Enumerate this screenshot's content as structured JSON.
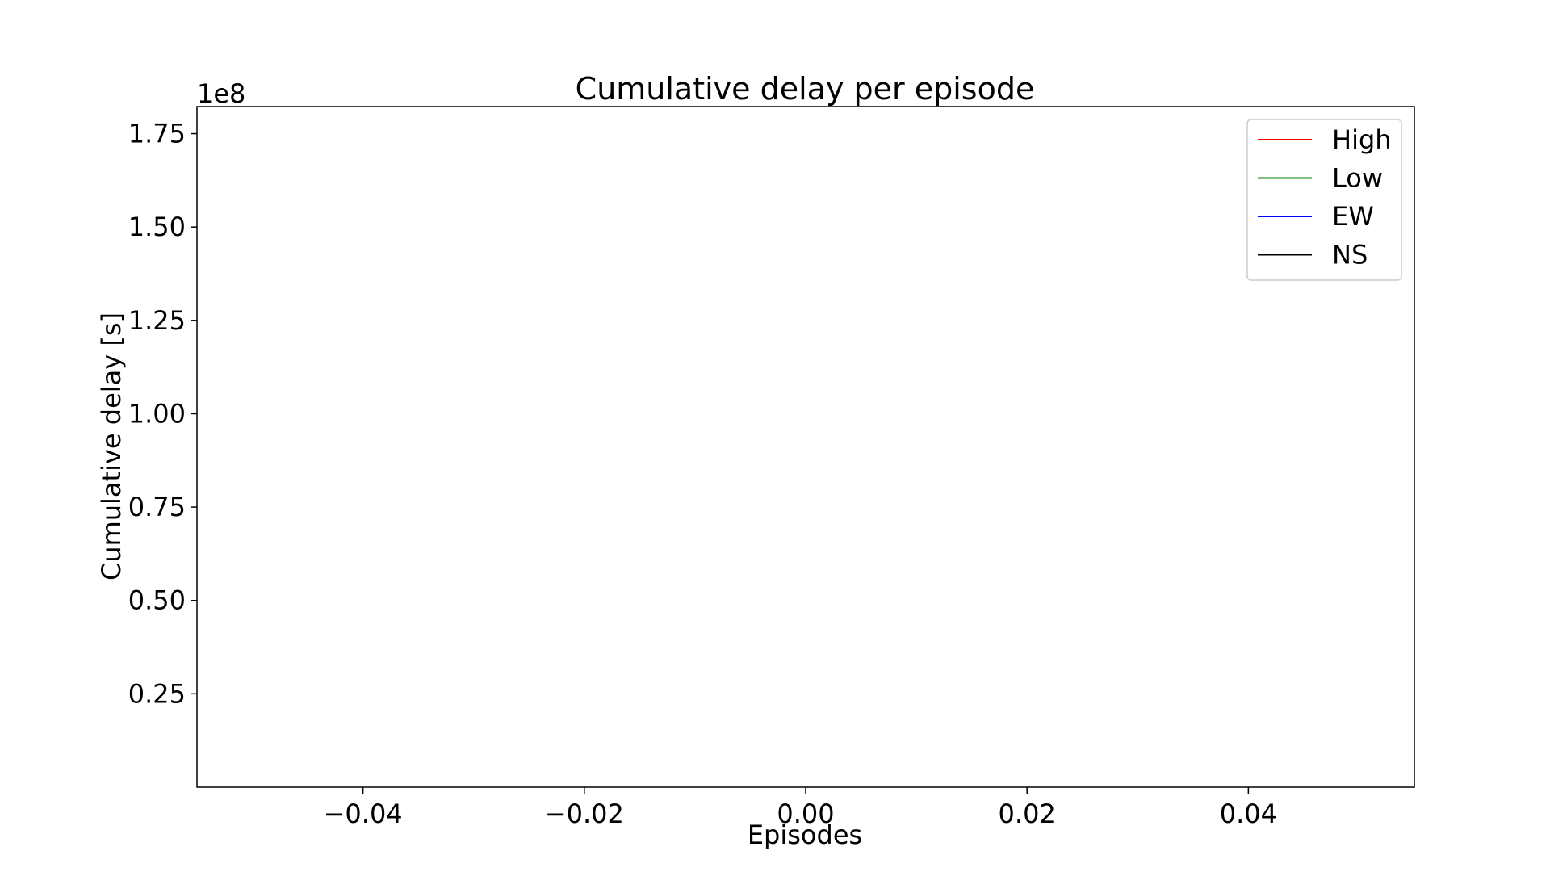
{
  "chart_data": {
    "type": "line",
    "title": "Cumulative delay per episode",
    "xlabel": "Episodes",
    "ylabel": "Cumulative delay [s]",
    "y_offset_label": "1e8",
    "xlim": [
      -0.055,
      0.055
    ],
    "ylim": [
      0.0,
      1.8225
    ],
    "x_ticks": [
      -0.04,
      -0.02,
      0.0,
      0.02,
      0.04
    ],
    "x_tick_labels": [
      "−0.04",
      "−0.02",
      "0.00",
      "0.02",
      "0.04"
    ],
    "y_ticks": [
      0.25,
      0.5,
      0.75,
      1.0,
      1.25,
      1.5,
      1.75
    ],
    "y_tick_labels": [
      "0.25",
      "0.50",
      "0.75",
      "1.00",
      "1.25",
      "1.50",
      "1.75"
    ],
    "grid": false,
    "legend_position": "top-right",
    "series": [
      {
        "name": "High",
        "color": "#ff0000",
        "x": [],
        "y": []
      },
      {
        "name": "Low",
        "color": "#008000",
        "x": [],
        "y": []
      },
      {
        "name": "EW",
        "color": "#0000ff",
        "x": [],
        "y": []
      },
      {
        "name": "NS",
        "color": "#000000",
        "x": [],
        "y": []
      }
    ]
  }
}
